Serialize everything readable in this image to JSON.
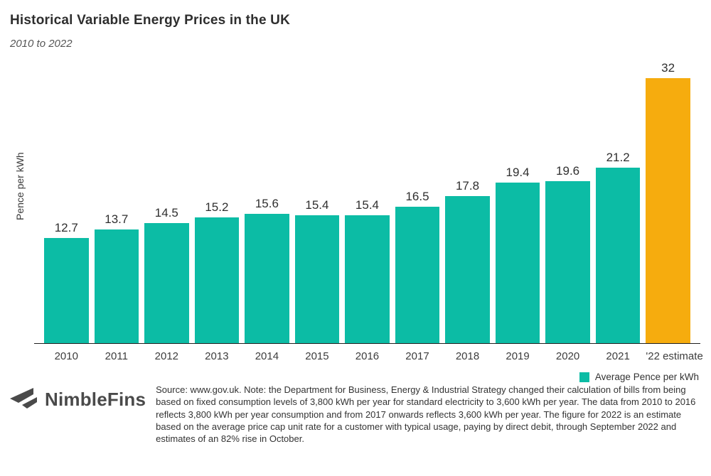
{
  "header": {
    "title": "Historical Variable Energy Prices in the UK",
    "subtitle": "2010 to 2022"
  },
  "chart_data": {
    "type": "bar",
    "title": "Historical Variable Energy Prices in the UK",
    "subtitle": "2010 to 2022",
    "categories": [
      "2010",
      "2011",
      "2012",
      "2013",
      "2014",
      "2015",
      "2016",
      "2017",
      "2018",
      "2019",
      "2020",
      "2021",
      "'22 estimate"
    ],
    "values": [
      12.7,
      13.7,
      14.5,
      15.2,
      15.6,
      15.4,
      15.4,
      16.5,
      17.8,
      19.4,
      19.6,
      21.2,
      32
    ],
    "value_labels": [
      "12.7",
      "13.7",
      "14.5",
      "15.2",
      "15.6",
      "15.4",
      "15.4",
      "16.5",
      "17.8",
      "19.4",
      "19.6",
      "21.2",
      "32"
    ],
    "xlabel": "",
    "ylabel": "Pence per kWh",
    "ylim": [
      0,
      32
    ],
    "grid": false,
    "colors": {
      "default_bar": "#0CBCA5",
      "estimate_bar": "#F6AC0E",
      "axis_line": "#1f1f1f"
    },
    "bar_color_keys": [
      "default_bar",
      "default_bar",
      "default_bar",
      "default_bar",
      "default_bar",
      "default_bar",
      "default_bar",
      "default_bar",
      "default_bar",
      "default_bar",
      "default_bar",
      "default_bar",
      "estimate_bar"
    ],
    "legend": {
      "position": "bottom-right",
      "entries": [
        {
          "label": "Average Pence per kWh",
          "swatch_color": "#0CBCA5"
        }
      ]
    }
  },
  "footer": {
    "brand": "NimbleFins",
    "source_note": "Source: www.gov.uk. Note: the Department for Business, Energy & Industrial Strategy changed their calculation of bills from being based on fixed consumption levels of 3,800 kWh per year for standard electricity to 3,600 kWh per year. The data from 2010 to 2016 reflects 3,800 kWh per year consumption and from 2017 onwards reflects 3,600 kWh per year. The figure for 2022 is an estimate based on the average price cap unit rate for a customer with typical usage, paying by direct debit, through September 2022 and estimates of an 82% rise in October."
  }
}
